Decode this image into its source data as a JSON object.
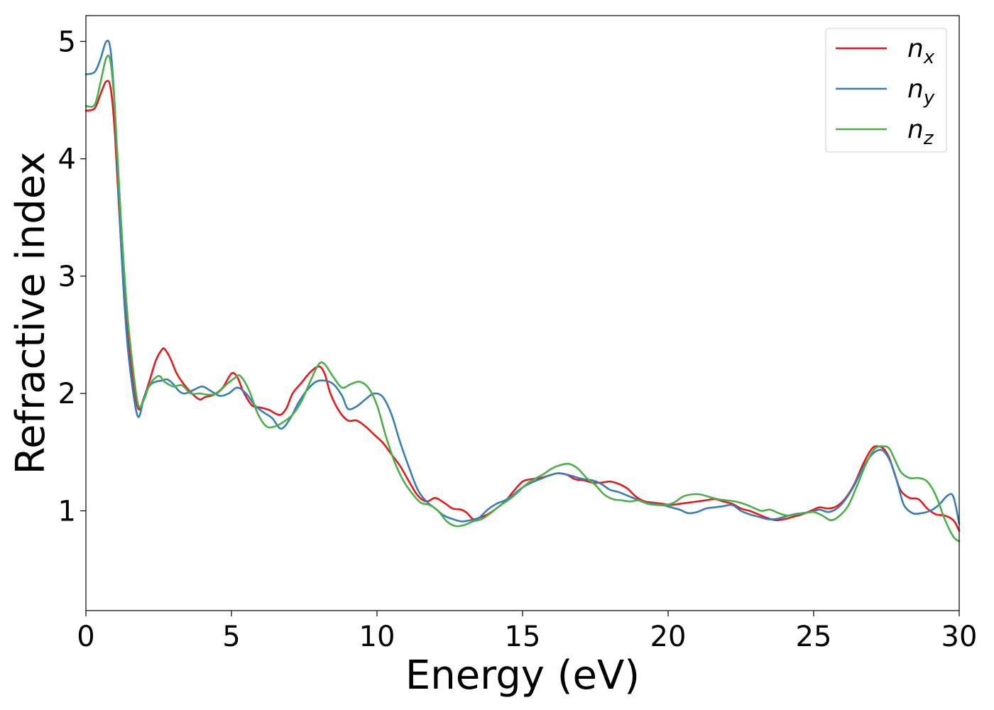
{
  "chart_data": {
    "type": "line",
    "xlabel": "Energy (eV)",
    "ylabel": "Refractive index",
    "xlim": [
      0,
      30
    ],
    "ylim": [
      0.15,
      5.22
    ],
    "xticks": [
      "0",
      "5",
      "10",
      "15",
      "20",
      "25",
      "30"
    ],
    "yticks": [
      "1",
      "2",
      "3",
      "4",
      "5"
    ],
    "grid": false,
    "legend_position": "top-right",
    "series": [
      {
        "name": "n_x",
        "legend_base": "n",
        "legend_sub": "x",
        "color": "#e41a1c",
        "x": [
          0,
          0.3,
          0.5,
          0.7,
          0.85,
          1.0,
          1.2,
          1.4,
          1.6,
          1.8,
          2.0,
          2.2,
          2.4,
          2.6,
          2.7,
          2.9,
          3.1,
          3.3,
          3.6,
          3.9,
          4.1,
          4.4,
          4.7,
          5.0,
          5.2,
          5.4,
          5.7,
          6.0,
          6.3,
          6.5,
          6.7,
          6.9,
          7.1,
          7.4,
          7.7,
          8.0,
          8.2,
          8.4,
          8.7,
          9.0,
          9.3,
          9.6,
          9.9,
          10.2,
          10.5,
          10.8,
          11.1,
          11.4,
          11.7,
          12.0,
          12.3,
          12.6,
          12.9,
          13.1,
          13.3,
          13.5,
          13.8,
          14.1,
          14.4,
          14.7,
          15.0,
          15.3,
          15.6,
          15.9,
          16.2,
          16.5,
          16.8,
          17.1,
          17.4,
          17.7,
          18.0,
          18.3,
          18.6,
          18.9,
          19.2,
          19.5,
          19.8,
          20.1,
          20.4,
          20.7,
          21.0,
          21.3,
          21.6,
          21.9,
          22.2,
          22.5,
          22.8,
          23.1,
          23.4,
          23.7,
          24.0,
          24.3,
          24.6,
          24.9,
          25.2,
          25.5,
          25.8,
          26.1,
          26.4,
          26.7,
          27.0,
          27.2,
          27.4,
          27.6,
          27.8,
          28.0,
          28.3,
          28.6,
          28.9,
          29.2,
          29.5,
          29.8,
          30.0
        ],
        "y": [
          4.41,
          4.43,
          4.55,
          4.66,
          4.6,
          4.2,
          3.3,
          2.6,
          2.15,
          1.87,
          1.97,
          2.12,
          2.28,
          2.37,
          2.38,
          2.3,
          2.18,
          2.1,
          2.01,
          1.95,
          1.97,
          1.99,
          2.05,
          2.17,
          2.14,
          2.02,
          1.9,
          1.88,
          1.86,
          1.83,
          1.82,
          1.88,
          2.0,
          2.09,
          2.18,
          2.23,
          2.17,
          2.0,
          1.85,
          1.77,
          1.77,
          1.72,
          1.65,
          1.58,
          1.48,
          1.38,
          1.25,
          1.13,
          1.08,
          1.11,
          1.07,
          1.02,
          1.01,
          0.98,
          0.93,
          0.94,
          0.97,
          1.02,
          1.08,
          1.17,
          1.25,
          1.27,
          1.28,
          1.3,
          1.32,
          1.31,
          1.27,
          1.26,
          1.24,
          1.24,
          1.25,
          1.23,
          1.19,
          1.12,
          1.08,
          1.07,
          1.06,
          1.05,
          1.06,
          1.07,
          1.08,
          1.09,
          1.1,
          1.08,
          1.06,
          1.02,
          1.0,
          0.97,
          0.94,
          0.92,
          0.93,
          0.95,
          0.97,
          1.0,
          1.03,
          1.02,
          1.04,
          1.11,
          1.23,
          1.4,
          1.53,
          1.55,
          1.53,
          1.45,
          1.3,
          1.17,
          1.11,
          1.1,
          1.02,
          0.97,
          0.96,
          0.92,
          0.83
        ]
      },
      {
        "name": "n_y",
        "legend_base": "n",
        "legend_sub": "y",
        "color": "#377eb8",
        "x": [
          0,
          0.3,
          0.5,
          0.7,
          0.85,
          1.0,
          1.2,
          1.4,
          1.6,
          1.8,
          2.0,
          2.2,
          2.4,
          2.6,
          2.8,
          3.0,
          3.2,
          3.4,
          3.7,
          4.0,
          4.3,
          4.6,
          4.9,
          5.2,
          5.5,
          5.8,
          6.1,
          6.4,
          6.7,
          7.0,
          7.3,
          7.6,
          7.9,
          8.2,
          8.5,
          8.8,
          9.0,
          9.3,
          9.6,
          9.9,
          10.2,
          10.5,
          10.8,
          11.1,
          11.4,
          11.7,
          12.0,
          12.3,
          12.6,
          12.9,
          13.2,
          13.5,
          13.8,
          14.1,
          14.4,
          14.7,
          15.0,
          15.3,
          15.6,
          15.9,
          16.2,
          16.5,
          16.8,
          17.1,
          17.4,
          17.7,
          18.0,
          18.3,
          18.6,
          18.9,
          19.2,
          19.5,
          19.8,
          20.1,
          20.4,
          20.7,
          21.0,
          21.3,
          21.6,
          21.9,
          22.2,
          22.5,
          22.8,
          23.1,
          23.4,
          23.7,
          24.0,
          24.3,
          24.6,
          24.9,
          25.2,
          25.5,
          25.8,
          26.1,
          26.4,
          26.7,
          27.0,
          27.3,
          27.5,
          27.7,
          27.9,
          28.1,
          28.4,
          28.7,
          29.0,
          29.3,
          29.6,
          29.8,
          30.0
        ],
        "y": [
          4.72,
          4.74,
          4.85,
          5.0,
          4.92,
          4.4,
          3.3,
          2.5,
          2.05,
          1.8,
          1.97,
          2.07,
          2.1,
          2.11,
          2.12,
          2.08,
          2.02,
          2.0,
          2.03,
          2.06,
          2.02,
          1.98,
          2.0,
          2.05,
          2.0,
          1.9,
          1.84,
          1.79,
          1.7,
          1.78,
          1.92,
          2.03,
          2.1,
          2.11,
          2.08,
          1.98,
          1.87,
          1.89,
          1.95,
          2.0,
          1.97,
          1.82,
          1.58,
          1.37,
          1.18,
          1.08,
          1.02,
          0.96,
          0.93,
          0.91,
          0.92,
          0.94,
          1.01,
          1.06,
          1.09,
          1.14,
          1.2,
          1.24,
          1.27,
          1.3,
          1.32,
          1.31,
          1.29,
          1.27,
          1.26,
          1.23,
          1.18,
          1.16,
          1.13,
          1.1,
          1.07,
          1.06,
          1.05,
          1.03,
          1.01,
          0.98,
          0.99,
          1.02,
          1.03,
          1.04,
          1.05,
          1.0,
          0.97,
          0.95,
          0.93,
          0.93,
          0.95,
          0.97,
          0.98,
          0.99,
          1.01,
          0.99,
          1.02,
          1.1,
          1.22,
          1.37,
          1.48,
          1.52,
          1.48,
          1.38,
          1.22,
          1.05,
          0.98,
          0.98,
          1.0,
          1.05,
          1.13,
          1.12,
          0.89
        ]
      },
      {
        "name": "n_z",
        "legend_base": "n",
        "legend_sub": "z",
        "color": "#4daf4a",
        "x": [
          0,
          0.3,
          0.5,
          0.7,
          0.85,
          1.0,
          1.2,
          1.4,
          1.6,
          1.8,
          2.0,
          2.2,
          2.5,
          2.7,
          3.0,
          3.3,
          3.6,
          3.9,
          4.2,
          4.5,
          4.8,
          5.1,
          5.3,
          5.6,
          5.9,
          6.2,
          6.5,
          6.8,
          7.1,
          7.4,
          7.7,
          8.0,
          8.2,
          8.5,
          8.8,
          9.1,
          9.4,
          9.7,
          10.0,
          10.3,
          10.6,
          10.9,
          11.2,
          11.5,
          11.8,
          12.1,
          12.4,
          12.7,
          13.0,
          13.3,
          13.6,
          13.9,
          14.2,
          14.5,
          14.8,
          15.1,
          15.4,
          15.7,
          16.0,
          16.3,
          16.6,
          16.9,
          17.2,
          17.5,
          17.8,
          18.1,
          18.4,
          18.7,
          19.0,
          19.3,
          19.6,
          19.9,
          20.2,
          20.5,
          20.8,
          21.1,
          21.4,
          21.7,
          22.0,
          22.3,
          22.6,
          22.9,
          23.2,
          23.5,
          23.8,
          24.1,
          24.4,
          24.7,
          25.0,
          25.3,
          25.6,
          25.9,
          26.2,
          26.5,
          26.8,
          27.1,
          27.4,
          27.6,
          27.8,
          28.0,
          28.3,
          28.6,
          28.9,
          29.2,
          29.5,
          29.8,
          30.0
        ],
        "y": [
          4.45,
          4.46,
          4.65,
          4.86,
          4.82,
          4.4,
          3.5,
          2.75,
          2.25,
          1.9,
          1.95,
          2.08,
          2.15,
          2.1,
          2.06,
          2.07,
          2.0,
          2.0,
          1.99,
          2.0,
          2.07,
          2.13,
          2.15,
          2.03,
          1.83,
          1.72,
          1.72,
          1.76,
          1.82,
          1.93,
          2.1,
          2.25,
          2.25,
          2.14,
          2.05,
          2.08,
          2.1,
          2.05,
          1.9,
          1.64,
          1.42,
          1.26,
          1.15,
          1.07,
          1.05,
          1.0,
          0.91,
          0.87,
          0.88,
          0.91,
          0.93,
          0.98,
          1.04,
          1.09,
          1.15,
          1.22,
          1.27,
          1.31,
          1.36,
          1.39,
          1.4,
          1.36,
          1.28,
          1.22,
          1.14,
          1.1,
          1.09,
          1.08,
          1.09,
          1.06,
          1.05,
          1.05,
          1.07,
          1.12,
          1.14,
          1.14,
          1.12,
          1.1,
          1.09,
          1.08,
          1.06,
          1.03,
          1.0,
          1.01,
          0.98,
          0.96,
          0.97,
          0.98,
          0.99,
          0.96,
          0.92,
          0.96,
          1.05,
          1.22,
          1.4,
          1.53,
          1.55,
          1.53,
          1.43,
          1.33,
          1.28,
          1.28,
          1.25,
          1.13,
          0.93,
          0.78,
          0.74
        ]
      }
    ]
  }
}
